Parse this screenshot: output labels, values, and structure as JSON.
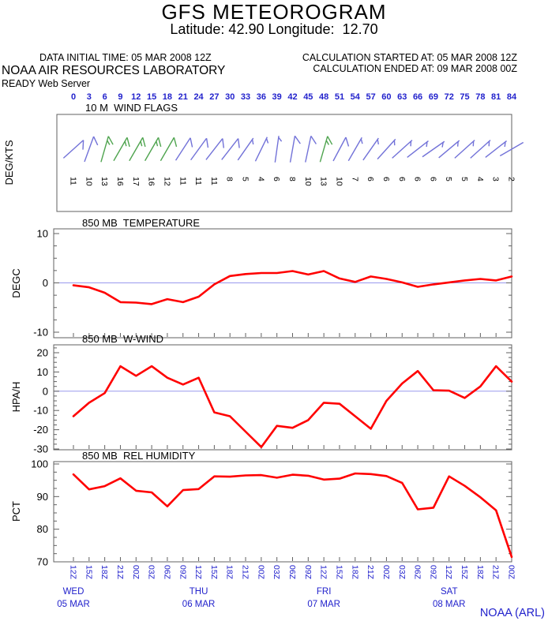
{
  "header": {
    "title": "GFS METEOROGRAM",
    "subtitle": "Latitude: 42.90 Longitude:  12.70",
    "data_initial_time": "DATA INITIAL TIME: 05 MAR 2008 12Z",
    "org": "NOAA AIR RESOURCES LABORATORY",
    "server": "READY Web Server",
    "calc_started": "CALCULATION STARTED AT: 05 MAR 2008 12Z",
    "calc_ended": "CALCULATION ENDED AT: 09 MAR 2008 00Z"
  },
  "footer": {
    "credit": "NOAA (ARL)"
  },
  "colors": {
    "red_curve": "#ff0000",
    "zero_line": "#9999ee",
    "blue_text": "#2222cc",
    "barb_blue": "#7272d8",
    "barb_green": "#4fa44f",
    "frame": "#606060",
    "black_text": "#000000"
  },
  "chart_data": {
    "type": "meteogram",
    "x_hours": [
      0,
      3,
      6,
      9,
      12,
      15,
      18,
      21,
      24,
      27,
      30,
      33,
      36,
      39,
      42,
      45,
      48,
      51,
      54,
      57,
      60,
      63,
      66,
      69,
      72,
      75,
      78,
      81,
      84
    ],
    "panels": [
      {
        "type": "wind-barbs",
        "name": "wind-flags",
        "title": "10 M  WIND FLAGS",
        "ylabel": "DEG/KTS",
        "speeds_kts": [
          11,
          10,
          13,
          16,
          17,
          16,
          12,
          11,
          11,
          11,
          8,
          5,
          4,
          6,
          8,
          10,
          13,
          10,
          7,
          6,
          6,
          6,
          6,
          6,
          5,
          5,
          4,
          3,
          2
        ],
        "staff_tilt_deg": [
          48,
          20,
          16,
          30,
          30,
          30,
          30,
          33,
          36,
          38,
          38,
          35,
          26,
          8,
          10,
          12,
          16,
          28,
          30,
          35,
          42,
          48,
          52,
          55,
          50,
          48,
          48,
          52,
          60
        ],
        "flag_color_rule": "green if kts >= 12, else blue"
      },
      {
        "type": "line",
        "name": "temperature",
        "title": "850 MB  TEMPERATURE",
        "ylabel": "DEGC",
        "yticks": [
          10,
          0,
          -10
        ],
        "ylim": [
          -11,
          11
        ],
        "zero_line": true,
        "values": [
          -0.5,
          -0.9,
          -2.0,
          -3.9,
          -4.0,
          -4.3,
          -3.3,
          -3.9,
          -2.8,
          -0.3,
          1.4,
          1.8,
          2.0,
          2.0,
          2.4,
          1.7,
          2.4,
          0.9,
          0.2,
          1.3,
          0.8,
          0.1,
          -0.8,
          -0.3,
          0.1,
          0.5,
          0.8,
          0.5,
          1.3
        ]
      },
      {
        "type": "line",
        "name": "w-wind",
        "title": "850 MB  W-WIND",
        "ylabel": "HPA/H",
        "yticks": [
          20,
          10,
          0,
          -10,
          -20,
          -30
        ],
        "ylim": [
          -31,
          24
        ],
        "zero_line": true,
        "values": [
          -13,
          -6,
          -1,
          13,
          8,
          13,
          7,
          3.5,
          7,
          -11,
          -13,
          -21,
          -29,
          -18,
          -19,
          -15,
          -6,
          -6.5,
          -13,
          -19.5,
          -5,
          4,
          10.5,
          0.5,
          0.3,
          -3.5,
          2.5,
          13,
          5
        ]
      },
      {
        "type": "line",
        "name": "rel-humidity",
        "title": "850 MB  REL HUMIDITY",
        "ylabel": "PCT",
        "yticks": [
          100,
          90,
          80,
          70
        ],
        "ylim": [
          70,
          101
        ],
        "zero_line": false,
        "values": [
          96.8,
          92.2,
          93.2,
          95.6,
          91.8,
          91.3,
          87,
          92,
          92.3,
          96.2,
          96.1,
          96.5,
          96.6,
          95.8,
          96.7,
          96.4,
          95.2,
          95.5,
          97.1,
          96.9,
          96.3,
          94.2,
          86.1,
          86.6,
          96.2,
          93.3,
          89.8,
          85.8,
          71.5
        ]
      }
    ],
    "xaxis": {
      "time_labels": [
        "12Z",
        "15Z",
        "18Z",
        "21Z",
        "00Z",
        "03Z",
        "06Z",
        "09Z",
        "12Z",
        "15Z",
        "18Z",
        "21Z",
        "00Z",
        "03Z",
        "06Z",
        "09Z",
        "12Z",
        "15Z",
        "18Z",
        "21Z",
        "00Z",
        "03Z",
        "06Z",
        "09Z",
        "12Z",
        "15Z",
        "18Z",
        "21Z",
        "00Z"
      ],
      "days": [
        {
          "label": "WED",
          "date": "05 MAR"
        },
        {
          "label": "THU",
          "date": "06 MAR"
        },
        {
          "label": "FRI",
          "date": "07 MAR"
        },
        {
          "label": "SAT",
          "date": "08 MAR"
        }
      ]
    }
  }
}
